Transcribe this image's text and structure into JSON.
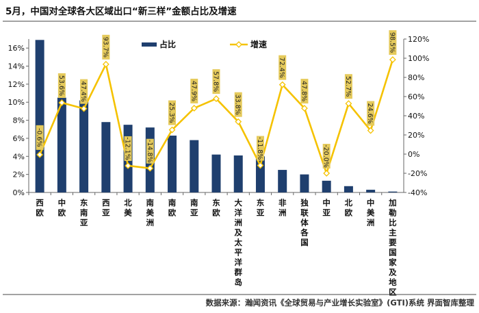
{
  "chart_data": {
    "type": "bar",
    "title": "5月，中国对全球各大区域出口“新三样”金额占比及增速",
    "source": "数据来源：瀚闻资讯《全球贸易与产业增长实验室》(GTI)系统   界面智库整理",
    "categories": [
      "西欧",
      "中欧",
      "东南亚",
      "西亚",
      "北美",
      "南美洲",
      "南欧",
      "南亚",
      "东欧",
      "大洋洲及太平洋群岛",
      "东亚",
      "非洲",
      "独联体各国",
      "中亚",
      "北欧",
      "中美洲",
      "加勒比主要国家及地区"
    ],
    "y_left": {
      "ylim": [
        0,
        17
      ],
      "ticks": [
        "0%",
        "2%",
        "4%",
        "6%",
        "8%",
        "10%",
        "12%",
        "14%",
        "16%"
      ]
    },
    "y_right": {
      "ylim": [
        -40,
        120
      ],
      "ticks": [
        "-40%",
        "-20%",
        "0%",
        "20%",
        "40%",
        "60%",
        "80%",
        "100%",
        "120%"
      ]
    },
    "legend_position": "top",
    "series": [
      {
        "name": "占比",
        "type": "bar",
        "axis": "left",
        "color": "#1f3f6e",
        "values": [
          16.9,
          10.5,
          10.2,
          7.8,
          7.5,
          7.2,
          6.3,
          5.8,
          4.2,
          4.1,
          4.0,
          2.5,
          2.0,
          1.3,
          0.7,
          0.3,
          0.1
        ]
      },
      {
        "name": "增速",
        "type": "line",
        "axis": "right",
        "color": "#f5c200",
        "values": [
          -0.6,
          53.6,
          47.4,
          93.7,
          -12.1,
          -14.8,
          25.3,
          47.9,
          57.8,
          33.8,
          -11.8,
          72.4,
          47.8,
          -20.0,
          52.7,
          24.6,
          98.5
        ],
        "labels": [
          "-0.6%",
          "53.6%",
          "47.4%",
          "93.7%",
          "-12.1%",
          "-14.8%",
          "25.3%",
          "47.9%",
          "57.8%",
          "33.8%",
          "-11.8%",
          "72.4%",
          "47.8%",
          "-20.0%",
          "52.7%",
          "24.6%",
          "98.5%"
        ]
      }
    ]
  }
}
